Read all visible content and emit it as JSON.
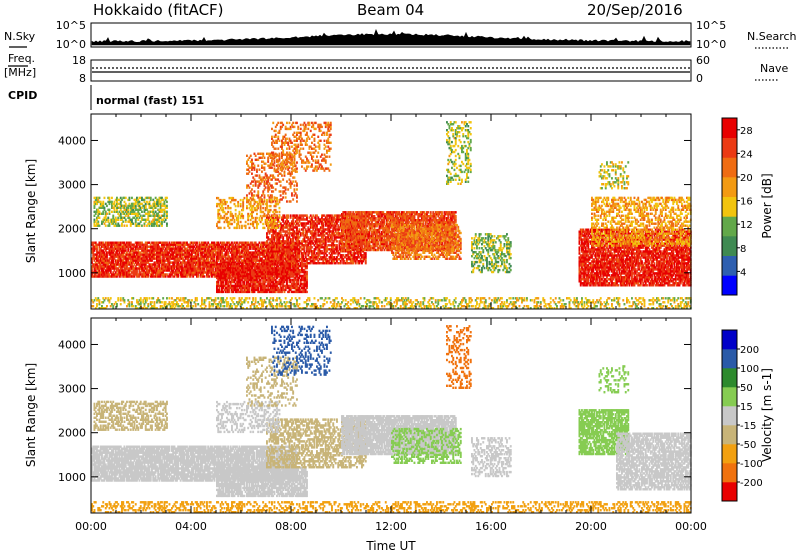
{
  "header": {
    "station": "Hokkaido (fitACF)",
    "beam": "Beam 04",
    "date": "20/Sep/2016"
  },
  "status_panel": {
    "nsky_label": "N.Sky",
    "nsearch_label": "N.Search",
    "noise_ticks_left": [
      "10^5",
      "10^0"
    ],
    "noise_ticks_right": [
      "10^5",
      "10^0"
    ],
    "freq_label": "Freq.",
    "freq_unit": "[MHz]",
    "freq_ticks": [
      "18",
      "8"
    ],
    "nave_label": "Nave",
    "nave_ticks": [
      "60",
      "0"
    ],
    "cpid_label": "CPID",
    "cpid_value": "normal (fast) 151"
  },
  "colors": {
    "power_scale": [
      "#0000ff",
      "#2e5fb0",
      "#3f8a52",
      "#62a84a",
      "#f2c40e",
      "#f39a12",
      "#ef6c12",
      "#eb3a14",
      "#e80000"
    ],
    "velocity_scale": [
      "#e80000",
      "#f0720e",
      "#f2a010",
      "#c8b478",
      "#c8c8c8",
      "#86cc52",
      "#2d8a2d",
      "#2a5aa8",
      "#0000c8"
    ],
    "ground_scatter_gray": "#c8c8c8"
  },
  "chart_data": [
    {
      "type": "heatmap",
      "panel": "power",
      "ylabel": "Slant Range [km]",
      "xlabel": "",
      "ylim": [
        180,
        4600
      ],
      "xlim": [
        0,
        24
      ],
      "y_ticks": [
        "1000",
        "2000",
        "3000",
        "4000"
      ],
      "colorbar": {
        "label": "Power [dB]",
        "ticks": [
          "4",
          "8",
          "12",
          "16",
          "20",
          "24",
          "28"
        ],
        "range": [
          0,
          30
        ]
      },
      "regions": [
        {
          "t0": 0.0,
          "t1": 8.2,
          "r0": 900,
          "r1": 1700,
          "value": 26,
          "density": 0.85
        },
        {
          "t0": 5.0,
          "t1": 8.6,
          "r0": 550,
          "r1": 1200,
          "value": 27,
          "density": 0.8
        },
        {
          "t0": 7.0,
          "t1": 11.0,
          "r0": 1200,
          "r1": 2300,
          "value": 26,
          "density": 0.7
        },
        {
          "t0": 10.0,
          "t1": 14.6,
          "r0": 1500,
          "r1": 2400,
          "value": 24,
          "density": 0.85
        },
        {
          "t0": 12.0,
          "t1": 14.8,
          "r0": 1300,
          "r1": 2100,
          "value": 21,
          "density": 0.6
        },
        {
          "t0": 0.1,
          "t1": 3.0,
          "r0": 2050,
          "r1": 2700,
          "value": 13,
          "density": 0.55
        },
        {
          "t0": 5.0,
          "t1": 7.5,
          "r0": 2000,
          "r1": 2700,
          "value": 18,
          "density": 0.35
        },
        {
          "t0": 6.2,
          "t1": 8.2,
          "r0": 2600,
          "r1": 3700,
          "value": 22,
          "density": 0.3
        },
        {
          "t0": 7.2,
          "t1": 9.6,
          "r0": 3300,
          "r1": 4400,
          "value": 21,
          "density": 0.3
        },
        {
          "t0": 14.2,
          "t1": 15.2,
          "r0": 3000,
          "r1": 4400,
          "value": 13,
          "density": 0.3
        },
        {
          "t0": 15.2,
          "t1": 16.8,
          "r0": 1000,
          "r1": 1900,
          "value": 12,
          "density": 0.4
        },
        {
          "t0": 19.5,
          "t1": 24.0,
          "r0": 700,
          "r1": 2000,
          "value": 27,
          "density": 0.8
        },
        {
          "t0": 20.0,
          "t1": 24.0,
          "r0": 1600,
          "r1": 2700,
          "value": 18,
          "density": 0.45
        },
        {
          "t0": 20.3,
          "t1": 21.5,
          "r0": 2900,
          "r1": 3500,
          "value": 14,
          "density": 0.3
        },
        {
          "t0": 0.0,
          "t1": 24.0,
          "r0": 180,
          "r1": 450,
          "value": 15,
          "density": 0.35
        }
      ]
    },
    {
      "type": "heatmap",
      "panel": "velocity",
      "ylabel": "Slant Range [km]",
      "xlabel": "Time UT",
      "ylim": [
        180,
        4600
      ],
      "xlim": [
        0,
        24
      ],
      "y_ticks": [
        "1000",
        "2000",
        "3000",
        "4000"
      ],
      "x_ticks": [
        "00:00",
        "04:00",
        "08:00",
        "12:00",
        "16:00",
        "20:00",
        "00:00"
      ],
      "colorbar": {
        "label": "Velocity [m s-1]",
        "ticks": [
          "200",
          "100",
          "50",
          "15",
          "-15",
          "-50",
          "-100",
          "-200"
        ],
        "range": [
          -250,
          250
        ]
      },
      "regions": [
        {
          "t0": 0.0,
          "t1": 8.2,
          "r0": 900,
          "r1": 1700,
          "value": 0,
          "density": 0.85
        },
        {
          "t0": 5.0,
          "t1": 8.6,
          "r0": 550,
          "r1": 1200,
          "value": -5,
          "density": 0.8
        },
        {
          "t0": 7.0,
          "t1": 11.0,
          "r0": 1200,
          "r1": 2300,
          "value": -40,
          "density": 0.5
        },
        {
          "t0": 10.0,
          "t1": 14.6,
          "r0": 1500,
          "r1": 2400,
          "value": 2,
          "density": 0.85
        },
        {
          "t0": 12.0,
          "t1": 14.8,
          "r0": 1300,
          "r1": 2100,
          "value": 30,
          "density": 0.4
        },
        {
          "t0": 0.1,
          "t1": 3.0,
          "r0": 2050,
          "r1": 2700,
          "value": -30,
          "density": 0.5
        },
        {
          "t0": 5.0,
          "t1": 7.5,
          "r0": 2000,
          "r1": 2700,
          "value": 0,
          "density": 0.35
        },
        {
          "t0": 6.2,
          "t1": 8.2,
          "r0": 2600,
          "r1": 3700,
          "value": -45,
          "density": 0.25
        },
        {
          "t0": 7.2,
          "t1": 9.6,
          "r0": 3300,
          "r1": 4400,
          "value": 120,
          "density": 0.25
        },
        {
          "t0": 14.2,
          "t1": 15.2,
          "r0": 3000,
          "r1": 4400,
          "value": -150,
          "density": 0.25
        },
        {
          "t0": 15.2,
          "t1": 16.8,
          "r0": 1000,
          "r1": 1900,
          "value": 0,
          "density": 0.4
        },
        {
          "t0": 19.5,
          "t1": 21.5,
          "r0": 1500,
          "r1": 2500,
          "value": 35,
          "density": 0.7
        },
        {
          "t0": 21.0,
          "t1": 24.0,
          "r0": 700,
          "r1": 2000,
          "value": 0,
          "density": 0.7
        },
        {
          "t0": 20.3,
          "t1": 21.5,
          "r0": 2900,
          "r1": 3500,
          "value": 40,
          "density": 0.25
        },
        {
          "t0": 0.0,
          "t1": 24.0,
          "r0": 180,
          "r1": 450,
          "value": -60,
          "density": 0.35
        }
      ]
    }
  ]
}
